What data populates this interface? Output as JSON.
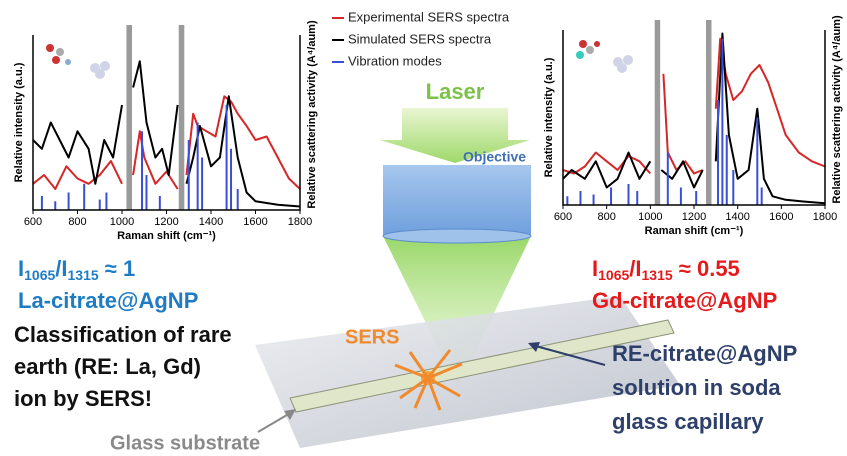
{
  "chart_data": [
    {
      "type": "line",
      "x_label": "Raman shift (cm⁻¹)",
      "y_label": "Relative intensity (a.u.)",
      "y2_label": "Relative scattering activity (A⁴/aum)",
      "xlim": [
        600,
        1800
      ],
      "xticks": [
        600,
        800,
        1000,
        1200,
        1400,
        1600,
        1800
      ],
      "ylim": [
        0,
        100
      ],
      "bands": [
        [
          1020,
          1045
        ],
        [
          1255,
          1280
        ]
      ],
      "series": [
        {
          "name": "Experimental SERS spectra",
          "color": "#d62728",
          "x": [
            600,
            650,
            700,
            750,
            800,
            850,
            900,
            950,
            1000,
            1030,
            1050,
            1080,
            1100,
            1150,
            1200,
            1250,
            1270,
            1290,
            1320,
            1340,
            1380,
            1420,
            1460,
            1490,
            1520,
            1560,
            1600,
            1650,
            1700,
            1750,
            1800
          ],
          "values": [
            15,
            20,
            12,
            25,
            18,
            15,
            20,
            28,
            15,
            null,
            20,
            45,
            30,
            15,
            22,
            12,
            null,
            20,
            55,
            48,
            45,
            42,
            65,
            62,
            55,
            48,
            40,
            42,
            30,
            18,
            12
          ]
        },
        {
          "name": "Simulated SERS spectra",
          "color": "#000000",
          "x": [
            600,
            640,
            680,
            720,
            760,
            800,
            850,
            880,
            920,
            960,
            1000,
            1030,
            1050,
            1080,
            1110,
            1150,
            1180,
            1210,
            1250,
            1270,
            1290,
            1320,
            1350,
            1400,
            1440,
            1480,
            1520,
            1560,
            1600,
            1700,
            1800
          ],
          "values": [
            40,
            35,
            50,
            40,
            30,
            45,
            35,
            15,
            40,
            30,
            60,
            null,
            70,
            85,
            50,
            30,
            35,
            20,
            60,
            null,
            15,
            30,
            48,
            25,
            30,
            65,
            30,
            10,
            5,
            3,
            2
          ]
        },
        {
          "name": "Vibration modes",
          "type": "bar",
          "color": "#3b4fd6",
          "x": [
            640,
            700,
            760,
            830,
            900,
            930,
            1090,
            1110,
            1170,
            1300,
            1340,
            1360,
            1470,
            1490,
            1520
          ],
          "values": [
            8,
            5,
            10,
            15,
            6,
            10,
            45,
            20,
            8,
            40,
            50,
            30,
            60,
            35,
            12
          ]
        }
      ]
    },
    {
      "type": "line",
      "x_label": "Raman shift (cm⁻¹)",
      "y_label": "Relative intensity (a.u.)",
      "y2_label": "Relative scattering activity (A⁴/aum)",
      "xlim": [
        600,
        1800
      ],
      "xticks": [
        600,
        800,
        1000,
        1200,
        1400,
        1600,
        1800
      ],
      "ylim": [
        0,
        100
      ],
      "bands": [
        [
          1020,
          1045
        ],
        [
          1255,
          1280
        ]
      ],
      "series": [
        {
          "color": "#d62728",
          "x": [
            600,
            650,
            700,
            750,
            800,
            850,
            900,
            950,
            1000,
            1030,
            1060,
            1080,
            1120,
            1160,
            1200,
            1240,
            1270,
            1300,
            1320,
            1345,
            1380,
            1420,
            1460,
            1500,
            1540,
            1580,
            1620,
            1680,
            1740,
            1800
          ],
          "values": [
            20,
            18,
            22,
            30,
            25,
            20,
            28,
            25,
            18,
            null,
            75,
            30,
            20,
            25,
            18,
            20,
            null,
            55,
            95,
            75,
            60,
            65,
            75,
            80,
            70,
            55,
            40,
            30,
            25,
            22
          ]
        },
        {
          "color": "#000000",
          "x": [
            600,
            640,
            700,
            750,
            800,
            850,
            900,
            950,
            1000,
            1030,
            1050,
            1100,
            1150,
            1200,
            1240,
            1270,
            1300,
            1330,
            1360,
            1400,
            1450,
            1490,
            1520,
            1560,
            1620,
            1700,
            1800
          ],
          "values": [
            15,
            20,
            15,
            25,
            10,
            15,
            30,
            15,
            25,
            null,
            20,
            15,
            25,
            10,
            20,
            null,
            25,
            98,
            40,
            15,
            20,
            55,
            15,
            5,
            3,
            2,
            1
          ]
        },
        {
          "type": "bar",
          "color": "#3b4fd6",
          "x": [
            620,
            680,
            740,
            820,
            900,
            940,
            1080,
            1140,
            1210,
            1310,
            1330,
            1350,
            1380,
            1490,
            1510
          ],
          "values": [
            5,
            8,
            6,
            10,
            12,
            8,
            30,
            10,
            8,
            60,
            95,
            40,
            20,
            50,
            10
          ]
        }
      ]
    }
  ],
  "labels": {
    "laser": "Laser",
    "objective": "Objective",
    "sers": "SERS",
    "la_ratio": {
      "a": "I",
      "a_sub": "1065",
      "b": "/I",
      "b_sub": "1315",
      "rest": " ≈ 1"
    },
    "la_name": "La-citrate@AgNP",
    "gd_ratio": {
      "a": "I",
      "a_sub": "1065",
      "b": "/I",
      "b_sub": "1315",
      "rest": " ≈ 0.55"
    },
    "gd_name": "Gd-citrate@AgNP",
    "classification": [
      "Classification of rare",
      "earth (RE: La, Gd)",
      "ion by SERS!"
    ],
    "solution": [
      "RE-citrate@AgNP",
      "solution in soda",
      "glass capillary"
    ],
    "substrate": "Glass substrate"
  }
}
